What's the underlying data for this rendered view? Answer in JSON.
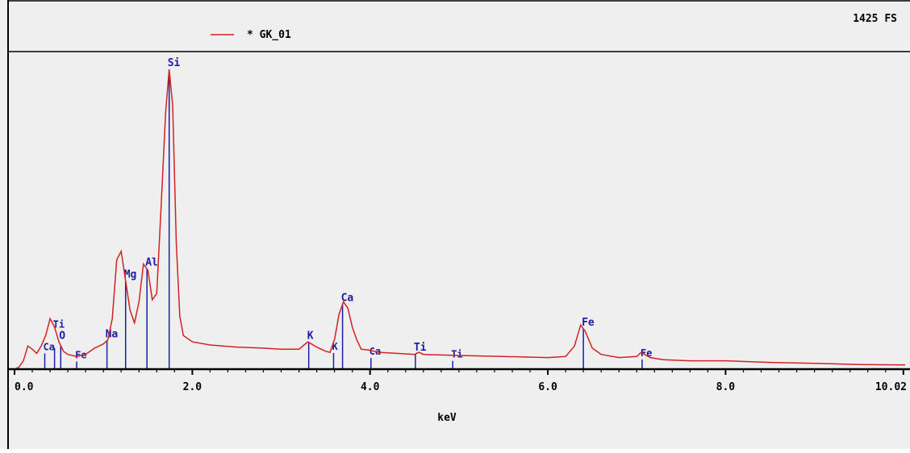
{
  "header": {
    "legend_label": "* GK_01",
    "full_scale": "1425 FS"
  },
  "colors": {
    "background": "#efefef",
    "frame": "#000000",
    "spectrum": "#d42020",
    "marker": "#1c1ca8"
  },
  "chart_data": {
    "type": "line",
    "title": "",
    "xlabel": "keV",
    "ylabel": "",
    "xlim": [
      0,
      10.02
    ],
    "ylim": [
      0,
      1425
    ],
    "x_ticks": [
      {
        "value": 0,
        "label": "0.0"
      },
      {
        "value": 2,
        "label": "2.0"
      },
      {
        "value": 4,
        "label": "4.0"
      },
      {
        "value": 6,
        "label": "6.0"
      },
      {
        "value": 8,
        "label": "8.0"
      },
      {
        "value": 10.02,
        "label": "10.02"
      }
    ],
    "legend": {
      "placement": "top-left",
      "entries": [
        "* GK_01"
      ]
    },
    "series": [
      {
        "name": "* GK_01",
        "color": "#d42020",
        "points": [
          [
            0.0,
            0
          ],
          [
            0.05,
            10
          ],
          [
            0.1,
            40
          ],
          [
            0.15,
            110
          ],
          [
            0.2,
            95
          ],
          [
            0.25,
            75
          ],
          [
            0.3,
            110
          ],
          [
            0.35,
            160
          ],
          [
            0.4,
            240
          ],
          [
            0.45,
            200
          ],
          [
            0.5,
            130
          ],
          [
            0.55,
            85
          ],
          [
            0.6,
            70
          ],
          [
            0.7,
            60
          ],
          [
            0.8,
            70
          ],
          [
            0.9,
            100
          ],
          [
            1.0,
            120
          ],
          [
            1.05,
            140
          ],
          [
            1.1,
            240
          ],
          [
            1.15,
            520
          ],
          [
            1.2,
            560
          ],
          [
            1.25,
            420
          ],
          [
            1.3,
            280
          ],
          [
            1.35,
            220
          ],
          [
            1.4,
            320
          ],
          [
            1.45,
            500
          ],
          [
            1.5,
            470
          ],
          [
            1.55,
            330
          ],
          [
            1.6,
            360
          ],
          [
            1.65,
            780
          ],
          [
            1.7,
            1220
          ],
          [
            1.74,
            1425
          ],
          [
            1.78,
            1250
          ],
          [
            1.82,
            600
          ],
          [
            1.86,
            250
          ],
          [
            1.9,
            160
          ],
          [
            2.0,
            130
          ],
          [
            2.2,
            115
          ],
          [
            2.5,
            105
          ],
          [
            2.8,
            100
          ],
          [
            3.0,
            95
          ],
          [
            3.2,
            95
          ],
          [
            3.3,
            130
          ],
          [
            3.4,
            105
          ],
          [
            3.5,
            85
          ],
          [
            3.55,
            80
          ],
          [
            3.6,
            140
          ],
          [
            3.65,
            260
          ],
          [
            3.7,
            320
          ],
          [
            3.75,
            290
          ],
          [
            3.8,
            200
          ],
          [
            3.85,
            140
          ],
          [
            3.9,
            95
          ],
          [
            4.0,
            90
          ],
          [
            4.1,
            80
          ],
          [
            4.3,
            75
          ],
          [
            4.5,
            70
          ],
          [
            4.55,
            80
          ],
          [
            4.6,
            70
          ],
          [
            5.0,
            65
          ],
          [
            5.5,
            60
          ],
          [
            6.0,
            55
          ],
          [
            6.2,
            60
          ],
          [
            6.3,
            110
          ],
          [
            6.37,
            210
          ],
          [
            6.42,
            180
          ],
          [
            6.5,
            100
          ],
          [
            6.6,
            70
          ],
          [
            6.8,
            55
          ],
          [
            7.0,
            60
          ],
          [
            7.05,
            80
          ],
          [
            7.15,
            55
          ],
          [
            7.3,
            45
          ],
          [
            7.6,
            40
          ],
          [
            8.0,
            40
          ],
          [
            8.5,
            32
          ],
          [
            9.0,
            28
          ],
          [
            9.5,
            22
          ],
          [
            10.02,
            20
          ]
        ]
      }
    ],
    "markers": [
      {
        "label": "Ca",
        "x": 0.34,
        "height": 0.5
      },
      {
        "label": "O",
        "x": 0.52,
        "height": 1.0
      },
      {
        "label": "Ti",
        "x": 0.45,
        "height": 0.5
      },
      {
        "label": "Fe",
        "x": 0.7,
        "height": 0.6
      },
      {
        "label": "Na",
        "x": 1.04,
        "height": 1.0
      },
      {
        "label": "Mg",
        "x": 1.25,
        "height": 1.0
      },
      {
        "label": "Al",
        "x": 1.49,
        "height": 1.0
      },
      {
        "label": "Si",
        "x": 1.74,
        "height": 1.0
      },
      {
        "label": "K",
        "x": 3.31,
        "height": 1.0
      },
      {
        "label": "K",
        "x": 3.59,
        "height": 0.6
      },
      {
        "label": "Ca",
        "x": 3.69,
        "height": 1.0
      },
      {
        "label": "Ca",
        "x": 4.01,
        "height": 0.6
      },
      {
        "label": "Ti",
        "x": 4.51,
        "height": 1.0
      },
      {
        "label": "Ti",
        "x": 4.93,
        "height": 0.6
      },
      {
        "label": "Fe",
        "x": 6.4,
        "height": 1.0
      },
      {
        "label": "Fe",
        "x": 7.06,
        "height": 0.6
      }
    ]
  }
}
